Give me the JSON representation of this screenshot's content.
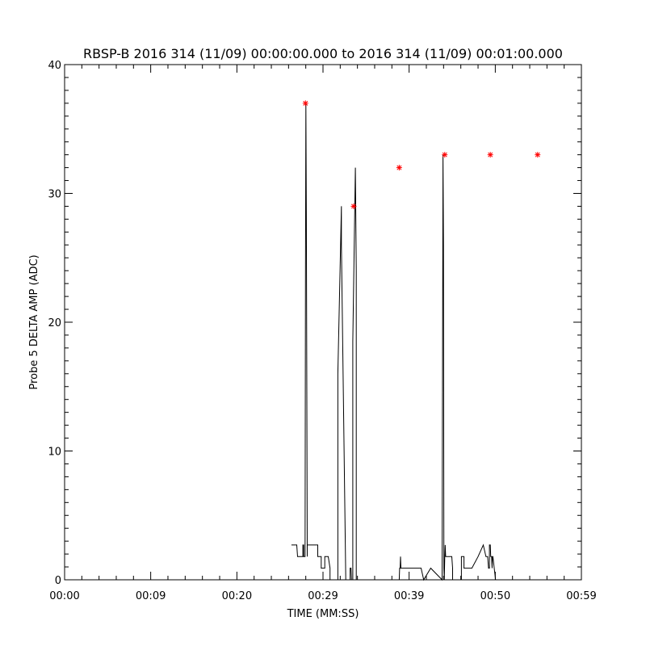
{
  "chart_data": {
    "type": "line",
    "title": "RBSP-B 2016 314 (11/09) 00:00:00.000 to 2016 314 (11/09) 00:01:00.000",
    "xlabel": "TIME (MM:SS)",
    "ylabel": "Probe 5 DELTA AMP (ADC)",
    "xlim": [
      0,
      59
    ],
    "ylim": [
      0,
      40
    ],
    "x_ticks": [
      {
        "value": 0,
        "label": "00:00"
      },
      {
        "value": 9.83,
        "label": "00:09"
      },
      {
        "value": 19.67,
        "label": "00:20"
      },
      {
        "value": 29.5,
        "label": "00:29"
      },
      {
        "value": 39.33,
        "label": "00:39"
      },
      {
        "value": 49.17,
        "label": "00:50"
      },
      {
        "value": 59,
        "label": "00:59"
      }
    ],
    "y_ticks": [
      0,
      10,
      20,
      30,
      40
    ],
    "grid": false,
    "colors": {
      "line": "#000000",
      "peak_marker": "#ff0000"
    },
    "series": [
      {
        "x": [
          25.9,
          26.5,
          26.6,
          27.2,
          27.2,
          27.3,
          27.3,
          27.45,
          27.5,
          27.55,
          27.6,
          27.7,
          27.7,
          27.8,
          28.1,
          28.1,
          28.5,
          28.9,
          28.9,
          29.3,
          29.3,
          29.7,
          29.7,
          30.1,
          30.3,
          30.3,
          31.2,
          31.2,
          31.6,
          31.6,
          32.1,
          32.2,
          32.5,
          32.6,
          32.6,
          32.7,
          32.75,
          32.8,
          32.85,
          32.9,
          32.9,
          33.2,
          33.3,
          33.3,
          33.7,
          33.7,
          38.1,
          38.15,
          38.2,
          38.25,
          38.3,
          38.35,
          38.4,
          38.45,
          40.6,
          40.7,
          40.7,
          41,
          41,
          41.8,
          41.8,
          43.1,
          43.15,
          43.2,
          43.25,
          43.3,
          43.35,
          43.4,
          43.45,
          43.5,
          44.2,
          44.3,
          44.3,
          45.3,
          45.3,
          45.6,
          45.6,
          46.5,
          46.5,
          47.2,
          47.2,
          47.8,
          48.1,
          48.3,
          48.4,
          48.5,
          48.5,
          48.6,
          48.65,
          48.7,
          48.75,
          48.8,
          48.85,
          48.9,
          48.9,
          49.2,
          49.3,
          49.3,
          49.6,
          49.6,
          50.1,
          50.1,
          50.5,
          50.5,
          51.3,
          51.3,
          51.9,
          51.9,
          53.2,
          53.2,
          53.6,
          53.6,
          53.8,
          53.85,
          53.9,
          53.95,
          54,
          54.05,
          54.1,
          54.15,
          54.2,
          55.4,
          55.4,
          55.8,
          55.8,
          56.7,
          56.7,
          57.1,
          57.1,
          57.5,
          57.5,
          57.9,
          57.9,
          58.6,
          58.6,
          59
        ],
        "y": [
          2.7,
          2.7,
          1.8,
          1.8,
          2.7,
          2.7,
          1.8,
          1.8,
          23.5,
          37,
          28,
          1.8,
          2.7,
          2.7,
          2.7,
          2.7,
          2.7,
          2.7,
          1.8,
          1.8,
          0.9,
          0.9,
          1.8,
          1.8,
          0.9,
          0,
          0,
          16,
          29,
          26,
          0,
          0,
          0,
          0,
          0.9,
          0.9,
          0,
          0,
          0,
          0,
          18.5,
          32,
          24,
          0,
          0,
          0,
          0,
          0,
          0,
          0.9,
          0.9,
          1.8,
          0.9,
          0.9,
          0.9,
          0.9,
          0.9,
          0,
          0,
          0.9,
          0.9,
          0,
          18,
          33,
          26,
          0.9,
          0,
          1.8,
          2.7,
          1.8,
          1.8,
          0.9,
          0,
          0,
          1.8,
          1.8,
          0.9,
          0.9,
          0.9,
          1.8,
          1.8,
          2.7,
          1.8,
          1.8,
          0.9,
          0.9,
          2.7,
          2.7,
          1.8,
          1.8,
          1.8,
          0.9,
          1.8,
          1.8,
          1.8,
          0,
          0,
          0,
          0,
          0,
          0,
          0,
          0,
          0,
          0,
          0,
          0,
          0,
          0,
          0,
          0,
          0,
          0,
          0,
          0,
          0,
          0,
          0,
          0,
          0,
          0,
          0,
          0,
          0,
          0,
          0,
          0,
          0,
          0,
          0,
          0,
          0,
          0,
          0,
          0,
          0
        ]
      }
    ],
    "peaks": [
      {
        "x": 27.5,
        "y": 37
      },
      {
        "x": 33.0,
        "y": 29
      },
      {
        "x": 38.2,
        "y": 32
      },
      {
        "x": 43.4,
        "y": 33
      },
      {
        "x": 48.6,
        "y": 33
      },
      {
        "x": 54.0,
        "y": 33
      }
    ]
  }
}
